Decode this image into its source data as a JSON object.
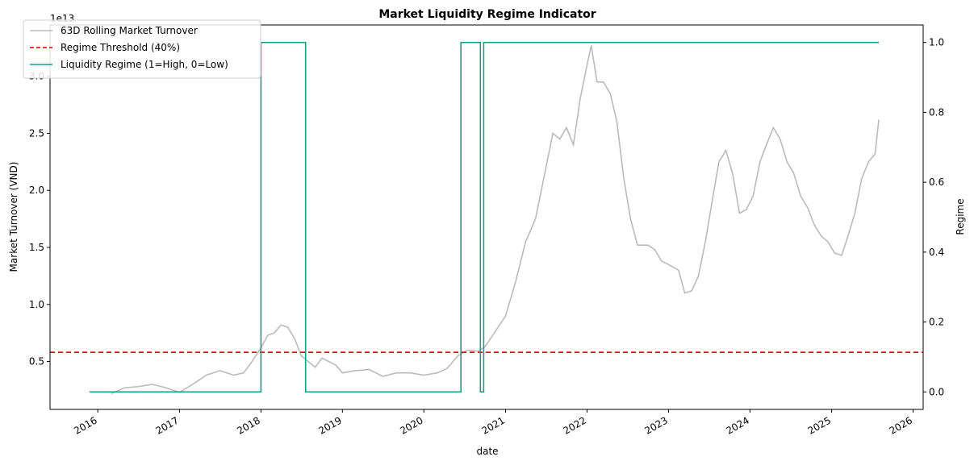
{
  "chart_data": {
    "type": "line",
    "title": "Market Liquidity Regime Indicator",
    "xlabel": "date",
    "ylabel_left": "Market Turnover (VND)",
    "ylabel_right": "Regime",
    "left_axis_offset_label": "1e13",
    "x_ticks": [
      "2016",
      "2017",
      "2018",
      "2019",
      "2020",
      "2021",
      "2022",
      "2023",
      "2024",
      "2025",
      "2026"
    ],
    "y_left_ticks": [
      "0.5",
      "1.0",
      "1.5",
      "2.0",
      "2.5",
      "3.0"
    ],
    "y_right_ticks": [
      "0.0",
      "0.2",
      "0.4",
      "0.6",
      "0.8",
      "1.0"
    ],
    "y_left_lim": [
      0.08,
      3.45
    ],
    "y_right_lim": [
      -0.05,
      1.05
    ],
    "x_lim": [
      "2015-06-01",
      "2026-02-15"
    ],
    "legend_position": "upper-left",
    "legend": [
      {
        "label": "63D Rolling Market Turnover",
        "style": "solid",
        "color": "#bbbbbb"
      },
      {
        "label": "Regime Threshold (40%)",
        "style": "dashed",
        "color": "#dd0000"
      },
      {
        "label": "Liquidity Regime (1=High, 0=Low)",
        "style": "solid",
        "color": "#1a9e8a"
      }
    ],
    "series": [
      {
        "name": "63D Rolling Market Turnover",
        "axis": "left",
        "color": "#bbbbbb",
        "points": [
          [
            "2016-03-01",
            0.22
          ],
          [
            "2016-05-01",
            0.27
          ],
          [
            "2016-07-01",
            0.28
          ],
          [
            "2016-09-01",
            0.3
          ],
          [
            "2016-11-01",
            0.27
          ],
          [
            "2017-01-01",
            0.23
          ],
          [
            "2017-03-01",
            0.3
          ],
          [
            "2017-05-01",
            0.38
          ],
          [
            "2017-07-01",
            0.42
          ],
          [
            "2017-09-01",
            0.38
          ],
          [
            "2017-10-15",
            0.4
          ],
          [
            "2017-11-15",
            0.48
          ],
          [
            "2018-01-01",
            0.62
          ],
          [
            "2018-02-01",
            0.73
          ],
          [
            "2018-03-01",
            0.75
          ],
          [
            "2018-04-01",
            0.82
          ],
          [
            "2018-05-01",
            0.8
          ],
          [
            "2018-06-01",
            0.7
          ],
          [
            "2018-07-01",
            0.55
          ],
          [
            "2018-08-01",
            0.5
          ],
          [
            "2018-09-01",
            0.45
          ],
          [
            "2018-10-01",
            0.53
          ],
          [
            "2018-11-01",
            0.5
          ],
          [
            "2018-12-01",
            0.47
          ],
          [
            "2019-01-01",
            0.4
          ],
          [
            "2019-03-01",
            0.42
          ],
          [
            "2019-05-01",
            0.43
          ],
          [
            "2019-07-01",
            0.37
          ],
          [
            "2019-09-01",
            0.4
          ],
          [
            "2019-11-01",
            0.4
          ],
          [
            "2020-01-01",
            0.38
          ],
          [
            "2020-03-01",
            0.4
          ],
          [
            "2020-04-15",
            0.44
          ],
          [
            "2020-06-01",
            0.55
          ],
          [
            "2020-07-15",
            0.6
          ],
          [
            "2020-09-01",
            0.59
          ],
          [
            "2020-10-01",
            0.63
          ],
          [
            "2020-11-01",
            0.72
          ],
          [
            "2021-01-01",
            0.9
          ],
          [
            "2021-02-15",
            1.2
          ],
          [
            "2021-04-01",
            1.55
          ],
          [
            "2021-05-15",
            1.75
          ],
          [
            "2021-07-01",
            2.2
          ],
          [
            "2021-08-01",
            2.5
          ],
          [
            "2021-09-01",
            2.45
          ],
          [
            "2021-10-01",
            2.55
          ],
          [
            "2021-11-01",
            2.4
          ],
          [
            "2021-12-01",
            2.8
          ],
          [
            "2022-01-01",
            3.1
          ],
          [
            "2022-01-20",
            3.27
          ],
          [
            "2022-02-15",
            2.95
          ],
          [
            "2022-03-15",
            2.95
          ],
          [
            "2022-04-15",
            2.85
          ],
          [
            "2022-05-15",
            2.6
          ],
          [
            "2022-06-15",
            2.1
          ],
          [
            "2022-07-15",
            1.75
          ],
          [
            "2022-08-15",
            1.52
          ],
          [
            "2022-10-01",
            1.52
          ],
          [
            "2022-11-01",
            1.48
          ],
          [
            "2022-12-01",
            1.38
          ],
          [
            "2023-01-01",
            1.35
          ],
          [
            "2023-02-15",
            1.3
          ],
          [
            "2023-03-15",
            1.1
          ],
          [
            "2023-04-15",
            1.12
          ],
          [
            "2023-05-15",
            1.25
          ],
          [
            "2023-06-15",
            1.55
          ],
          [
            "2023-07-15",
            1.9
          ],
          [
            "2023-08-15",
            2.25
          ],
          [
            "2023-09-15",
            2.35
          ],
          [
            "2023-10-15",
            2.15
          ],
          [
            "2023-11-15",
            1.8
          ],
          [
            "2023-12-15",
            1.83
          ],
          [
            "2024-01-15",
            1.95
          ],
          [
            "2024-02-15",
            2.25
          ],
          [
            "2024-03-15",
            2.4
          ],
          [
            "2024-04-15",
            2.55
          ],
          [
            "2024-05-15",
            2.45
          ],
          [
            "2024-06-15",
            2.25
          ],
          [
            "2024-07-15",
            2.15
          ],
          [
            "2024-08-15",
            1.95
          ],
          [
            "2024-09-15",
            1.85
          ],
          [
            "2024-10-15",
            1.7
          ],
          [
            "2024-11-15",
            1.6
          ],
          [
            "2024-12-15",
            1.55
          ],
          [
            "2025-01-15",
            1.45
          ],
          [
            "2025-02-15",
            1.43
          ],
          [
            "2025-03-15",
            1.6
          ],
          [
            "2025-04-15",
            1.8
          ],
          [
            "2025-05-15",
            2.1
          ],
          [
            "2025-06-15",
            2.25
          ],
          [
            "2025-07-15",
            2.32
          ],
          [
            "2025-07-31",
            2.62
          ]
        ]
      },
      {
        "name": "Regime Threshold (40%)",
        "axis": "left",
        "color": "#dd0000",
        "value": 0.58
      },
      {
        "name": "Liquidity Regime (1=High, 0=Low)",
        "axis": "right",
        "color": "#1a9e8a",
        "points": [
          [
            "2015-11-25",
            0
          ],
          [
            "2018-01-01",
            0
          ],
          [
            "2018-01-01",
            1
          ],
          [
            "2018-07-20",
            1
          ],
          [
            "2018-07-20",
            0
          ],
          [
            "2020-06-15",
            0
          ],
          [
            "2020-06-15",
            1
          ],
          [
            "2020-09-10",
            1
          ],
          [
            "2020-09-10",
            0
          ],
          [
            "2020-09-25",
            0
          ],
          [
            "2020-09-25",
            1
          ],
          [
            "2025-07-31",
            1
          ]
        ]
      }
    ]
  }
}
